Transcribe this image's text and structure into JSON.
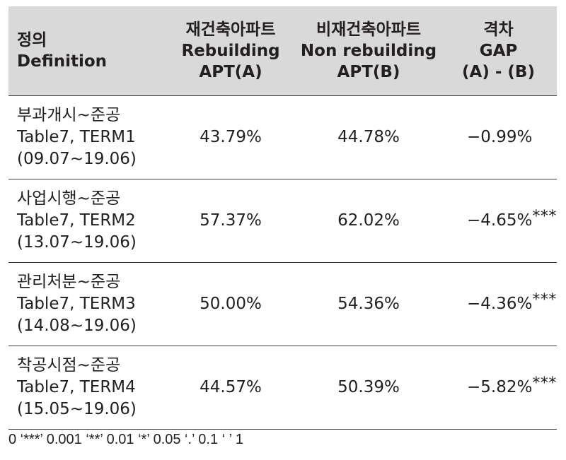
{
  "table": {
    "header": {
      "definition": [
        "정의",
        "Definition"
      ],
      "col_a": [
        "재건축아파트",
        "Rebuilding",
        "APT(A)"
      ],
      "col_b": [
        "비재건축아파트",
        "Non rebuilding",
        "APT(B)"
      ],
      "col_gap": [
        "격차",
        "GAP",
        "(A) - (B)"
      ]
    },
    "rows": [
      {
        "definition": [
          "부과개시~준공",
          "Table7, TERM1",
          "(09.07~19.06)"
        ],
        "a": "43.79%",
        "b": "44.78%",
        "gap": "−0.99%",
        "stars": ""
      },
      {
        "definition": [
          "사업시행~준공",
          "Table7, TERM2",
          "(13.07~19.06)"
        ],
        "a": "57.37%",
        "b": "62.02%",
        "gap": "−4.65%",
        "stars": "***"
      },
      {
        "definition": [
          "관리처분~준공",
          "Table7, TERM3",
          "(14.08~19.06)"
        ],
        "a": "50.00%",
        "b": "54.36%",
        "gap": "−4.36%",
        "stars": "***"
      },
      {
        "definition": [
          "착공시점~준공",
          "Table7, TERM4",
          "(15.05~19.06)"
        ],
        "a": "44.57%",
        "b": "50.39%",
        "gap": "−5.82%",
        "stars": "***"
      }
    ]
  },
  "footnote": "0 ‘***’ 0.001 ‘**’ 0.01 ‘*’ 0.05 ‘.’ 0.1 ‘ ’ 1",
  "colors": {
    "header_bg": "#d9d9d9",
    "text": "#231f20",
    "rule": "#3a3a3a"
  }
}
